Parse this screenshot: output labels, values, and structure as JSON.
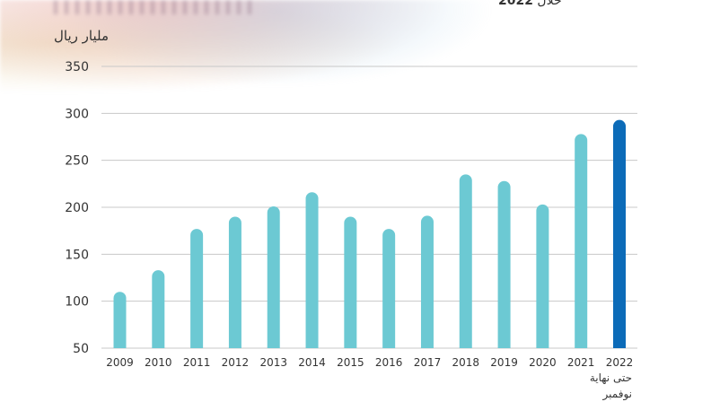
{
  "header": {
    "subtitle_prefix": "خلال",
    "subtitle_year": "2022"
  },
  "chart_data": {
    "type": "bar",
    "ylabel": "مليار ريال",
    "ylim": [
      50,
      350
    ],
    "yticks": [
      50,
      100,
      150,
      200,
      250,
      300,
      350
    ],
    "grid": true,
    "categories": [
      "2009",
      "2010",
      "2011",
      "2012",
      "2013",
      "2014",
      "2015",
      "2016",
      "2017",
      "2018",
      "2019",
      "2020",
      "2021",
      "2022"
    ],
    "values": [
      110,
      133,
      177,
      190,
      201,
      216,
      190,
      177,
      191,
      235,
      228,
      203,
      278,
      293
    ],
    "bar_color": "#6cc9d3",
    "highlight_color": "#0c6bb8",
    "highlight_index": 13,
    "last_category_note": "حتى نهاية نوفمبر"
  }
}
